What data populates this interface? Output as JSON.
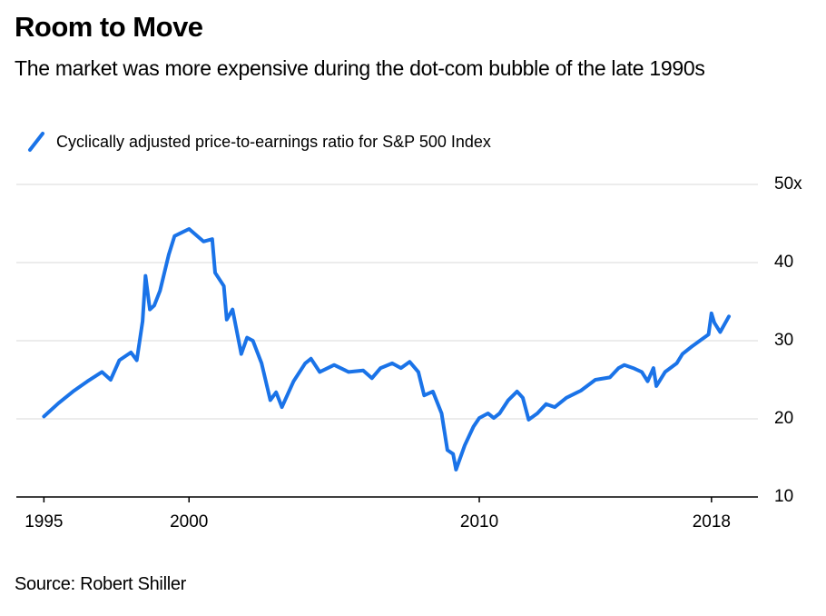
{
  "chart_data": {
    "type": "line",
    "title": "Room to Move",
    "subtitle": "The market was more expensive during the dot-com bubble of the late 1990s",
    "source": "Source: Robert Shiller",
    "x": [
      1995.0,
      1995.5,
      1996.0,
      1996.5,
      1997.0,
      1997.3,
      1997.6,
      1998.0,
      1998.2,
      1998.4,
      1998.5,
      1998.65,
      1998.8,
      1999.0,
      1999.3,
      1999.5,
      2000.0,
      2000.5,
      2000.8,
      2000.9,
      2001.2,
      2001.3,
      2001.5,
      2001.8,
      2002.0,
      2002.2,
      2002.5,
      2002.8,
      2003.0,
      2003.2,
      2003.6,
      2004.0,
      2004.2,
      2004.5,
      2005.0,
      2005.5,
      2006.0,
      2006.3,
      2006.6,
      2007.0,
      2007.3,
      2007.6,
      2007.9,
      2008.1,
      2008.4,
      2008.7,
      2008.9,
      2009.1,
      2009.2,
      2009.5,
      2009.8,
      2010.0,
      2010.3,
      2010.5,
      2010.7,
      2011.0,
      2011.3,
      2011.5,
      2011.7,
      2012.0,
      2012.3,
      2012.6,
      2013.0,
      2013.5,
      2014.0,
      2014.5,
      2014.8,
      2015.0,
      2015.3,
      2015.6,
      2015.8,
      2016.0,
      2016.1,
      2016.4,
      2016.8,
      2017.0,
      2017.3,
      2017.6,
      2017.9,
      2018.0,
      2018.1,
      2018.3,
      2018.6
    ],
    "series": [
      {
        "name": "Cyclically adjusted price-to-earnings ratio for S&P 500 Index",
        "color": "#1a73e8",
        "values": [
          20.3,
          22.0,
          23.5,
          24.8,
          26.0,
          25.0,
          27.5,
          28.5,
          27.5,
          32.5,
          38.3,
          34.0,
          34.5,
          36.4,
          41.0,
          43.4,
          44.3,
          42.7,
          43.0,
          38.7,
          37.0,
          32.7,
          34.0,
          28.3,
          30.4,
          30.0,
          27.1,
          22.4,
          23.4,
          21.5,
          24.8,
          27.1,
          27.7,
          26.0,
          26.9,
          26.0,
          26.2,
          25.2,
          26.5,
          27.1,
          26.5,
          27.3,
          26.0,
          23.0,
          23.5,
          20.7,
          16.0,
          15.5,
          13.5,
          16.6,
          19.0,
          20.1,
          20.7,
          20.1,
          20.7,
          22.4,
          23.5,
          22.7,
          19.9,
          20.7,
          21.9,
          21.5,
          22.7,
          23.6,
          25.0,
          25.3,
          26.5,
          26.9,
          26.5,
          26.0,
          24.8,
          26.5,
          24.2,
          26.0,
          27.1,
          28.3,
          29.2,
          30.0,
          30.8,
          33.5,
          32.3,
          31.1,
          33.1
        ]
      }
    ],
    "xlim": [
      1994.05,
      2019.6
    ],
    "xticks": [
      1995,
      2000,
      2010,
      2018
    ],
    "ylim": [
      10,
      50
    ],
    "yticks": [
      10,
      20,
      30,
      40,
      {
        "value": 50,
        "label": "50x"
      }
    ],
    "grid": true
  }
}
